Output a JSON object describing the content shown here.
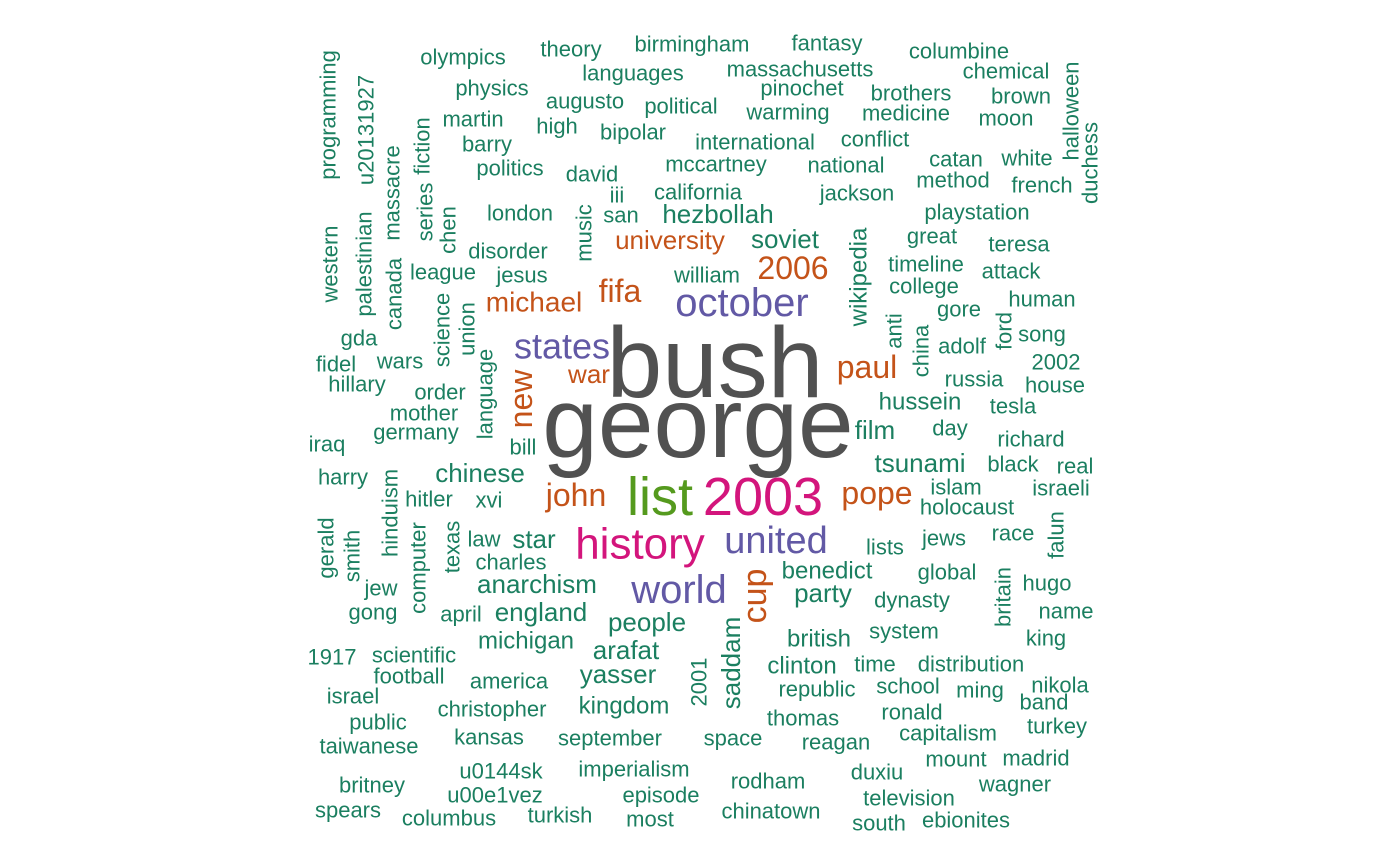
{
  "chart_data": {
    "type": "wordcloud",
    "palette": {
      "green": "#1b7f60",
      "orange": "#c45319",
      "purple": "#6259a5",
      "pink": "#d3157c",
      "lime": "#559a1e",
      "gray": "#515151"
    },
    "words": [
      {
        "text": "bush",
        "color": "gray",
        "rotated": false
      },
      {
        "text": "george",
        "color": "gray",
        "rotated": false
      },
      {
        "text": "list",
        "color": "lime",
        "rotated": false
      },
      {
        "text": "2003",
        "color": "pink",
        "rotated": false
      },
      {
        "text": "history",
        "color": "pink",
        "rotated": false
      },
      {
        "text": "october",
        "color": "purple",
        "rotated": false
      },
      {
        "text": "world",
        "color": "purple",
        "rotated": false
      },
      {
        "text": "united",
        "color": "purple",
        "rotated": false
      },
      {
        "text": "states",
        "color": "purple",
        "rotated": false
      },
      {
        "text": "cup",
        "color": "orange",
        "rotated": true
      },
      {
        "text": "fifa",
        "color": "orange",
        "rotated": false
      },
      {
        "text": "2006",
        "color": "orange",
        "rotated": false
      },
      {
        "text": "paul",
        "color": "orange",
        "rotated": false
      },
      {
        "text": "pope",
        "color": "orange",
        "rotated": false
      },
      {
        "text": "john",
        "color": "orange",
        "rotated": false
      },
      {
        "text": "new",
        "color": "orange",
        "rotated": true
      },
      {
        "text": "michael",
        "color": "orange",
        "rotated": false
      },
      {
        "text": "university",
        "color": "orange",
        "rotated": false
      },
      {
        "text": "war",
        "color": "orange",
        "rotated": false
      },
      {
        "text": "programming",
        "color": "green",
        "rotated": true
      },
      {
        "text": "u20131927",
        "color": "green",
        "rotated": true
      },
      {
        "text": "olympics",
        "color": "green",
        "rotated": false
      },
      {
        "text": "theory",
        "color": "green",
        "rotated": false
      },
      {
        "text": "birmingham",
        "color": "green",
        "rotated": false
      },
      {
        "text": "fantasy",
        "color": "green",
        "rotated": false
      },
      {
        "text": "columbine",
        "color": "green",
        "rotated": false
      },
      {
        "text": "languages",
        "color": "green",
        "rotated": false
      },
      {
        "text": "massachusetts",
        "color": "green",
        "rotated": false
      },
      {
        "text": "chemical",
        "color": "green",
        "rotated": false
      },
      {
        "text": "halloween",
        "color": "green",
        "rotated": true
      },
      {
        "text": "physics",
        "color": "green",
        "rotated": false
      },
      {
        "text": "pinochet",
        "color": "green",
        "rotated": false
      },
      {
        "text": "brothers",
        "color": "green",
        "rotated": false
      },
      {
        "text": "brown",
        "color": "green",
        "rotated": false
      },
      {
        "text": "augusto",
        "color": "green",
        "rotated": false
      },
      {
        "text": "political",
        "color": "green",
        "rotated": false
      },
      {
        "text": "warming",
        "color": "green",
        "rotated": false
      },
      {
        "text": "medicine",
        "color": "green",
        "rotated": false
      },
      {
        "text": "martin",
        "color": "green",
        "rotated": false
      },
      {
        "text": "high",
        "color": "green",
        "rotated": false
      },
      {
        "text": "bipolar",
        "color": "green",
        "rotated": false
      },
      {
        "text": "moon",
        "color": "green",
        "rotated": false
      },
      {
        "text": "duchess",
        "color": "green",
        "rotated": true
      },
      {
        "text": "barry",
        "color": "green",
        "rotated": false
      },
      {
        "text": "international",
        "color": "green",
        "rotated": false
      },
      {
        "text": "conflict",
        "color": "green",
        "rotated": false
      },
      {
        "text": "massacre",
        "color": "green",
        "rotated": true
      },
      {
        "text": "fiction",
        "color": "green",
        "rotated": true
      },
      {
        "text": "mccartney",
        "color": "green",
        "rotated": false
      },
      {
        "text": "catan",
        "color": "green",
        "rotated": false
      },
      {
        "text": "white",
        "color": "green",
        "rotated": false
      },
      {
        "text": "politics",
        "color": "green",
        "rotated": false
      },
      {
        "text": "david",
        "color": "green",
        "rotated": false
      },
      {
        "text": "national",
        "color": "green",
        "rotated": false
      },
      {
        "text": "method",
        "color": "green",
        "rotated": false
      },
      {
        "text": "french",
        "color": "green",
        "rotated": false
      },
      {
        "text": "california",
        "color": "green",
        "rotated": false
      },
      {
        "text": "jackson",
        "color": "green",
        "rotated": false
      },
      {
        "text": "iii",
        "color": "green",
        "rotated": false
      },
      {
        "text": "music",
        "color": "green",
        "rotated": true
      },
      {
        "text": "series",
        "color": "green",
        "rotated": true
      },
      {
        "text": "london",
        "color": "green",
        "rotated": false
      },
      {
        "text": "san",
        "color": "green",
        "rotated": false
      },
      {
        "text": "hezbollah",
        "color": "green",
        "rotated": false
      },
      {
        "text": "playstation",
        "color": "green",
        "rotated": false
      },
      {
        "text": "western",
        "color": "green",
        "rotated": true
      },
      {
        "text": "palestinian",
        "color": "green",
        "rotated": true
      },
      {
        "text": "chen",
        "color": "green",
        "rotated": true
      },
      {
        "text": "great",
        "color": "green",
        "rotated": false
      },
      {
        "text": "disorder",
        "color": "green",
        "rotated": false
      },
      {
        "text": "soviet",
        "color": "green",
        "rotated": false
      },
      {
        "text": "teresa",
        "color": "green",
        "rotated": false
      },
      {
        "text": "wikipedia",
        "color": "green",
        "rotated": true
      },
      {
        "text": "canada",
        "color": "green",
        "rotated": true
      },
      {
        "text": "league",
        "color": "green",
        "rotated": false
      },
      {
        "text": "jesus",
        "color": "green",
        "rotated": false
      },
      {
        "text": "william",
        "color": "green",
        "rotated": false
      },
      {
        "text": "timeline",
        "color": "green",
        "rotated": false
      },
      {
        "text": "attack",
        "color": "green",
        "rotated": false
      },
      {
        "text": "college",
        "color": "green",
        "rotated": false
      },
      {
        "text": "human",
        "color": "green",
        "rotated": false
      },
      {
        "text": "science",
        "color": "green",
        "rotated": true
      },
      {
        "text": "union",
        "color": "green",
        "rotated": true
      },
      {
        "text": "anti",
        "color": "green",
        "rotated": true
      },
      {
        "text": "gore",
        "color": "green",
        "rotated": false
      },
      {
        "text": "gda",
        "color": "green",
        "rotated": false
      },
      {
        "text": "ford",
        "color": "green",
        "rotated": true
      },
      {
        "text": "song",
        "color": "green",
        "rotated": false
      },
      {
        "text": "china",
        "color": "green",
        "rotated": true
      },
      {
        "text": "adolf",
        "color": "green",
        "rotated": false
      },
      {
        "text": "fidel",
        "color": "green",
        "rotated": false
      },
      {
        "text": "wars",
        "color": "green",
        "rotated": false
      },
      {
        "text": "2002",
        "color": "green",
        "rotated": false
      },
      {
        "text": "hillary",
        "color": "green",
        "rotated": false
      },
      {
        "text": "language",
        "color": "green",
        "rotated": true
      },
      {
        "text": "russia",
        "color": "green",
        "rotated": false
      },
      {
        "text": "house",
        "color": "green",
        "rotated": false
      },
      {
        "text": "order",
        "color": "green",
        "rotated": false
      },
      {
        "text": "hussein",
        "color": "green",
        "rotated": false
      },
      {
        "text": "tesla",
        "color": "green",
        "rotated": false
      },
      {
        "text": "mother",
        "color": "green",
        "rotated": false
      },
      {
        "text": "film",
        "color": "green",
        "rotated": false
      },
      {
        "text": "day",
        "color": "green",
        "rotated": false
      },
      {
        "text": "germany",
        "color": "green",
        "rotated": false
      },
      {
        "text": "richard",
        "color": "green",
        "rotated": false
      },
      {
        "text": "iraq",
        "color": "green",
        "rotated": false
      },
      {
        "text": "bill",
        "color": "green",
        "rotated": false
      },
      {
        "text": "tsunami",
        "color": "green",
        "rotated": false
      },
      {
        "text": "black",
        "color": "green",
        "rotated": false
      },
      {
        "text": "real",
        "color": "green",
        "rotated": false
      },
      {
        "text": "harry",
        "color": "green",
        "rotated": false
      },
      {
        "text": "chinese",
        "color": "green",
        "rotated": false
      },
      {
        "text": "islam",
        "color": "green",
        "rotated": false
      },
      {
        "text": "israeli",
        "color": "green",
        "rotated": false
      },
      {
        "text": "hinduism",
        "color": "green",
        "rotated": true
      },
      {
        "text": "hitler",
        "color": "green",
        "rotated": false
      },
      {
        "text": "xvi",
        "color": "green",
        "rotated": false
      },
      {
        "text": "holocaust",
        "color": "green",
        "rotated": false
      },
      {
        "text": "computer",
        "color": "green",
        "rotated": true
      },
      {
        "text": "texas",
        "color": "green",
        "rotated": true
      },
      {
        "text": "law",
        "color": "green",
        "rotated": false
      },
      {
        "text": "star",
        "color": "green",
        "rotated": false
      },
      {
        "text": "jews",
        "color": "green",
        "rotated": false
      },
      {
        "text": "race",
        "color": "green",
        "rotated": false
      },
      {
        "text": "falun",
        "color": "green",
        "rotated": true
      },
      {
        "text": "gerald",
        "color": "green",
        "rotated": true
      },
      {
        "text": "smith",
        "color": "green",
        "rotated": true
      },
      {
        "text": "charles",
        "color": "green",
        "rotated": false
      },
      {
        "text": "lists",
        "color": "green",
        "rotated": false
      },
      {
        "text": "jew",
        "color": "green",
        "rotated": false
      },
      {
        "text": "anarchism",
        "color": "green",
        "rotated": false
      },
      {
        "text": "benedict",
        "color": "green",
        "rotated": false
      },
      {
        "text": "global",
        "color": "green",
        "rotated": false
      },
      {
        "text": "hugo",
        "color": "green",
        "rotated": false
      },
      {
        "text": "britain",
        "color": "green",
        "rotated": true
      },
      {
        "text": "party",
        "color": "green",
        "rotated": false
      },
      {
        "text": "dynasty",
        "color": "green",
        "rotated": false
      },
      {
        "text": "gong",
        "color": "green",
        "rotated": false
      },
      {
        "text": "april",
        "color": "green",
        "rotated": false
      },
      {
        "text": "england",
        "color": "green",
        "rotated": false
      },
      {
        "text": "name",
        "color": "green",
        "rotated": false
      },
      {
        "text": "people",
        "color": "green",
        "rotated": false
      },
      {
        "text": "system",
        "color": "green",
        "rotated": false
      },
      {
        "text": "michigan",
        "color": "green",
        "rotated": false
      },
      {
        "text": "british",
        "color": "green",
        "rotated": false
      },
      {
        "text": "king",
        "color": "green",
        "rotated": false
      },
      {
        "text": "saddam",
        "color": "green",
        "rotated": true
      },
      {
        "text": "arafat",
        "color": "green",
        "rotated": false
      },
      {
        "text": "1917",
        "color": "green",
        "rotated": false
      },
      {
        "text": "scientific",
        "color": "green",
        "rotated": false
      },
      {
        "text": "clinton",
        "color": "green",
        "rotated": false
      },
      {
        "text": "time",
        "color": "green",
        "rotated": false
      },
      {
        "text": "distribution",
        "color": "green",
        "rotated": false
      },
      {
        "text": "2001",
        "color": "green",
        "rotated": true
      },
      {
        "text": "football",
        "color": "green",
        "rotated": false
      },
      {
        "text": "yasser",
        "color": "green",
        "rotated": false
      },
      {
        "text": "america",
        "color": "green",
        "rotated": false
      },
      {
        "text": "republic",
        "color": "green",
        "rotated": false
      },
      {
        "text": "school",
        "color": "green",
        "rotated": false
      },
      {
        "text": "ming",
        "color": "green",
        "rotated": false
      },
      {
        "text": "nikola",
        "color": "green",
        "rotated": false
      },
      {
        "text": "israel",
        "color": "green",
        "rotated": false
      },
      {
        "text": "band",
        "color": "green",
        "rotated": false
      },
      {
        "text": "kingdom",
        "color": "green",
        "rotated": false
      },
      {
        "text": "christopher",
        "color": "green",
        "rotated": false
      },
      {
        "text": "thomas",
        "color": "green",
        "rotated": false
      },
      {
        "text": "ronald",
        "color": "green",
        "rotated": false
      },
      {
        "text": "public",
        "color": "green",
        "rotated": false
      },
      {
        "text": "turkey",
        "color": "green",
        "rotated": false
      },
      {
        "text": "capitalism",
        "color": "green",
        "rotated": false
      },
      {
        "text": "kansas",
        "color": "green",
        "rotated": false
      },
      {
        "text": "september",
        "color": "green",
        "rotated": false
      },
      {
        "text": "space",
        "color": "green",
        "rotated": false
      },
      {
        "text": "taiwanese",
        "color": "green",
        "rotated": false
      },
      {
        "text": "reagan",
        "color": "green",
        "rotated": false
      },
      {
        "text": "mount",
        "color": "green",
        "rotated": false
      },
      {
        "text": "madrid",
        "color": "green",
        "rotated": false
      },
      {
        "text": "u0144sk",
        "color": "green",
        "rotated": false
      },
      {
        "text": "imperialism",
        "color": "green",
        "rotated": false
      },
      {
        "text": "duxiu",
        "color": "green",
        "rotated": false
      },
      {
        "text": "rodham",
        "color": "green",
        "rotated": false
      },
      {
        "text": "britney",
        "color": "green",
        "rotated": false
      },
      {
        "text": "wagner",
        "color": "green",
        "rotated": false
      },
      {
        "text": "u00e1vez",
        "color": "green",
        "rotated": false
      },
      {
        "text": "episode",
        "color": "green",
        "rotated": false
      },
      {
        "text": "television",
        "color": "green",
        "rotated": false
      },
      {
        "text": "spears",
        "color": "green",
        "rotated": false
      },
      {
        "text": "chinatown",
        "color": "green",
        "rotated": false
      },
      {
        "text": "columbus",
        "color": "green",
        "rotated": false
      },
      {
        "text": "turkish",
        "color": "green",
        "rotated": false
      },
      {
        "text": "most",
        "color": "green",
        "rotated": false
      },
      {
        "text": "south",
        "color": "green",
        "rotated": false
      },
      {
        "text": "ebionites",
        "color": "green",
        "rotated": false
      }
    ]
  }
}
